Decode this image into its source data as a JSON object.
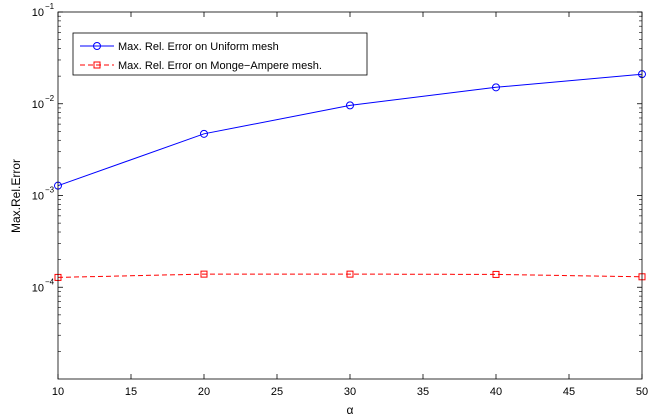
{
  "chart_data": {
    "type": "line",
    "title": "",
    "xlabel": "α",
    "ylabel": "Max.Rel.Error",
    "xlim": [
      10,
      50
    ],
    "ylim": [
      1e-05,
      0.1
    ],
    "yscale": "log",
    "grid": false,
    "legend_position": "top-left",
    "x_ticks": [
      "10",
      "15",
      "20",
      "25",
      "30",
      "35",
      "40",
      "45",
      "50"
    ],
    "y_ticks": [
      {
        "base": "10",
        "exp": "−1",
        "value": 0.1
      },
      {
        "base": "10",
        "exp": "−2",
        "value": 0.01
      },
      {
        "base": "10",
        "exp": "−3",
        "value": 0.001
      },
      {
        "base": "10",
        "exp": "−4",
        "value": 0.0001
      }
    ],
    "x": [
      10,
      20,
      30,
      40,
      50
    ],
    "series": [
      {
        "name": "Max. Rel. Error on Uniform mesh",
        "values": [
          0.00128,
          0.0047,
          0.0096,
          0.0151,
          0.021
        ],
        "color": "#0000ff",
        "line_style": "solid",
        "marker": "circle"
      },
      {
        "name": "Max. Rel. Error on Monge−Ampere mesh.",
        "values": [
          0.000128,
          0.000139,
          0.000139,
          0.000138,
          0.00013
        ],
        "color": "#ff0000",
        "line_style": "dashed",
        "marker": "square"
      }
    ]
  }
}
